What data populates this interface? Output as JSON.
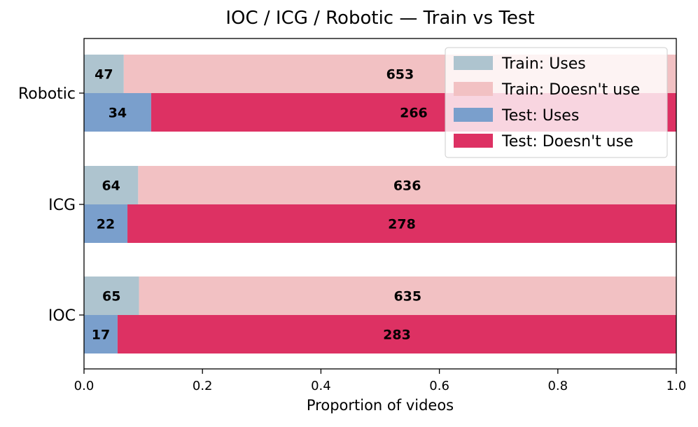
{
  "chart_data": {
    "type": "bar",
    "orientation": "horizontal",
    "stacked": true,
    "title": "IOC / ICG / Robotic — Train vs Test",
    "xlabel": "Proportion of videos",
    "ylabel": "",
    "xlim": [
      0,
      1
    ],
    "xticks": [
      "0.0",
      "0.2",
      "0.4",
      "0.6",
      "0.8",
      "1.0"
    ],
    "categories": [
      "IOC",
      "ICG",
      "Robotic"
    ],
    "groups": [
      {
        "name": "Train",
        "series": [
          {
            "name": "Train: Uses",
            "color": "#aec4cf",
            "counts": [
              65,
              64,
              47
            ]
          },
          {
            "name": "Train: Doesn't use",
            "color": "#f2c1c3",
            "counts": [
              635,
              636,
              653
            ]
          }
        ]
      },
      {
        "name": "Test",
        "series": [
          {
            "name": "Test: Uses",
            "color": "#7a9fcc",
            "counts": [
              17,
              22,
              34
            ]
          },
          {
            "name": "Test: Doesn't use",
            "color": "#dd3163",
            "counts": [
              283,
              278,
              266
            ]
          }
        ]
      }
    ],
    "legend": {
      "position": "top-right",
      "entries": [
        "Train: Uses",
        "Train: Doesn't use",
        "Test: Uses",
        "Test: Doesn't use"
      ]
    },
    "grid": false
  }
}
